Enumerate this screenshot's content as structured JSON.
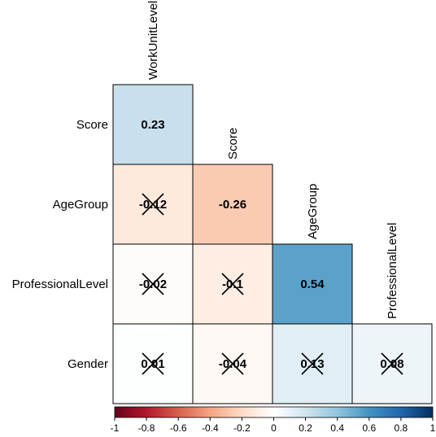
{
  "chart_data": {
    "type": "heatmap",
    "subtype": "correlation-matrix-lower-triangle",
    "variables_rows": [
      "Score",
      "AgeGroup",
      "ProfessionalLevel",
      "Gender"
    ],
    "variables_cols": [
      "WorkUnitLevel",
      "Score",
      "AgeGroup",
      "ProfessionalLevel"
    ],
    "cells": [
      {
        "row": "Score",
        "col": "WorkUnitLevel",
        "value": 0.23,
        "label": "0.23",
        "insignificant": false
      },
      {
        "row": "AgeGroup",
        "col": "WorkUnitLevel",
        "value": -0.12,
        "label": "-0.12",
        "insignificant": true
      },
      {
        "row": "AgeGroup",
        "col": "Score",
        "value": -0.26,
        "label": "-0.26",
        "insignificant": false
      },
      {
        "row": "ProfessionalLevel",
        "col": "WorkUnitLevel",
        "value": -0.02,
        "label": "-0.02",
        "insignificant": true
      },
      {
        "row": "ProfessionalLevel",
        "col": "Score",
        "value": -0.1,
        "label": "-0.1",
        "insignificant": true
      },
      {
        "row": "ProfessionalLevel",
        "col": "AgeGroup",
        "value": 0.54,
        "label": "0.54",
        "insignificant": false
      },
      {
        "row": "Gender",
        "col": "WorkUnitLevel",
        "value": 0.01,
        "label": "0.01",
        "insignificant": true
      },
      {
        "row": "Gender",
        "col": "Score",
        "value": -0.04,
        "label": "-0.04",
        "insignificant": true
      },
      {
        "row": "Gender",
        "col": "AgeGroup",
        "value": 0.13,
        "label": "0.13",
        "insignificant": true
      },
      {
        "row": "Gender",
        "col": "ProfessionalLevel",
        "value": 0.08,
        "label": "0.08",
        "insignificant": true
      }
    ],
    "colorbar": {
      "range": [
        -1,
        1
      ],
      "ticks": [
        "-1",
        "-0.8",
        "-0.6",
        "-0.4",
        "-0.2",
        "0",
        "0.2",
        "0.4",
        "0.6",
        "0.8",
        "1"
      ],
      "colors": [
        "#67001F",
        "#B2182B",
        "#D6604D",
        "#F4A582",
        "#FDDBC7",
        "#FFFFFF",
        "#D1E5F0",
        "#92C5DE",
        "#4393C3",
        "#2166AC",
        "#053061"
      ],
      "placement": "bottom"
    },
    "insignificant_marker": "cross"
  }
}
